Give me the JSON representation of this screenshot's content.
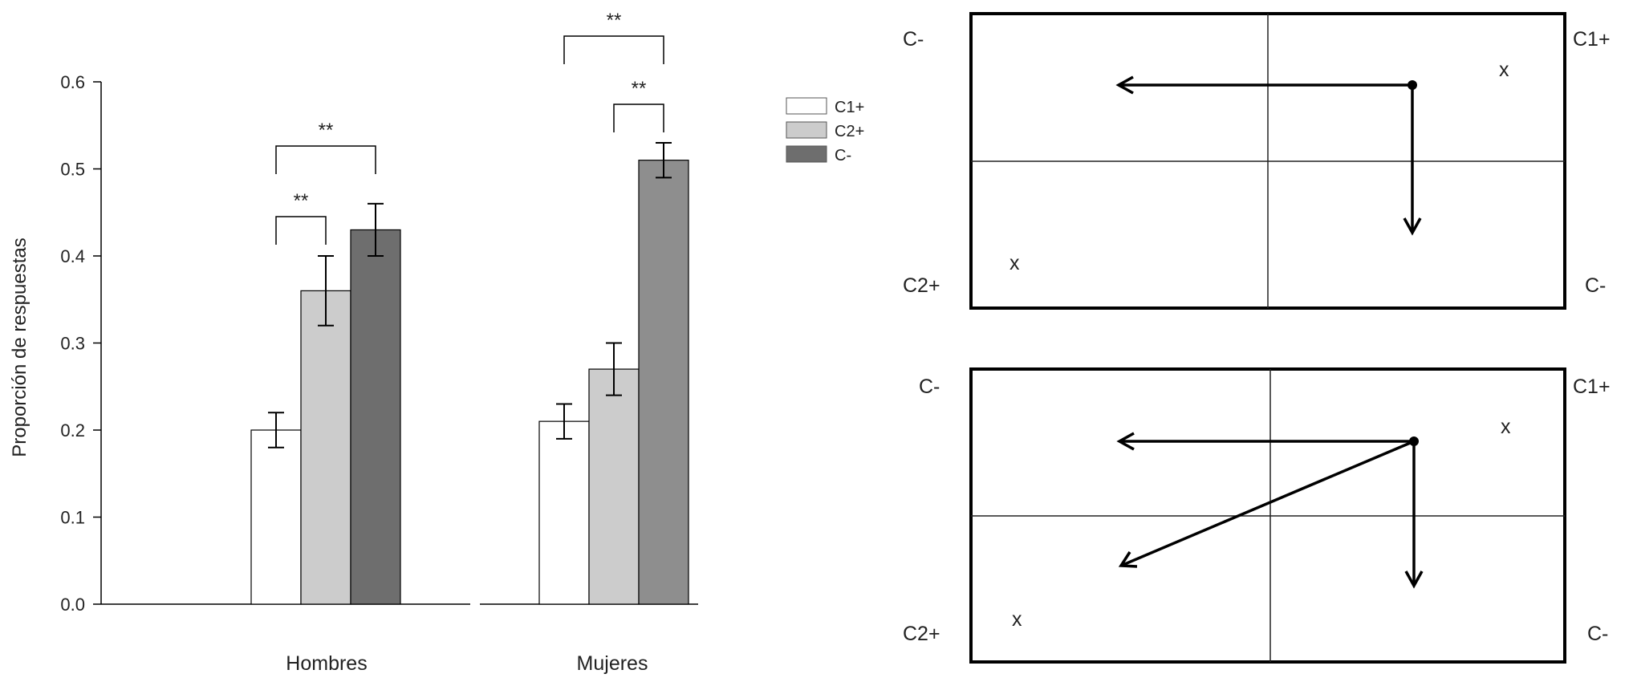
{
  "chart_data": {
    "type": "bar",
    "title": "",
    "xlabel": "",
    "ylabel": "Proporción de respuestas",
    "ylim": [
      0,
      0.6
    ],
    "yticks": [
      "0.0",
      "0.1",
      "0.2",
      "0.3",
      "0.4",
      "0.5",
      "0.6"
    ],
    "categories": [
      "Hombres",
      "Mujeres"
    ],
    "series": [
      {
        "name": "C1+",
        "values": [
          0.2,
          0.21
        ],
        "errors": [
          0.02,
          0.02
        ],
        "color": "#ffffff"
      },
      {
        "name": "C2+",
        "values": [
          0.36,
          0.27
        ],
        "errors": [
          0.04,
          0.03
        ],
        "color": "#cccccc"
      },
      {
        "name": "C-",
        "values": [
          0.43,
          0.51
        ],
        "errors": [
          0.03,
          0.02
        ],
        "color": [
          "#6e6e6e",
          "#8e8e8e"
        ]
      }
    ],
    "legend": {
      "position": "top-right"
    },
    "grid": false,
    "significance": [
      {
        "category": "Hombres",
        "from": "C1+",
        "to": "C2+",
        "label": "**"
      },
      {
        "category": "Hombres",
        "from": "C1+",
        "to": "C-",
        "label": "**"
      },
      {
        "category": "Mujeres",
        "from": "C2+",
        "to": "C-",
        "label": "**"
      },
      {
        "category": "Mujeres",
        "from": "C1+",
        "to": "C-",
        "label": "**"
      }
    ]
  },
  "diagrams": [
    {
      "corner_labels": {
        "top_left": "C-",
        "top_right": "C1+",
        "bottom_left": "C2+",
        "bottom_right": "C-"
      },
      "marks": [
        "x",
        "x"
      ],
      "arrows": [
        "left",
        "down"
      ]
    },
    {
      "corner_labels": {
        "top_left": "C-",
        "top_right": "C1+",
        "bottom_left": "C2+",
        "bottom_right": "C-"
      },
      "marks": [
        "x",
        "x"
      ],
      "arrows": [
        "left",
        "down",
        "diagonal-down-left"
      ]
    }
  ]
}
